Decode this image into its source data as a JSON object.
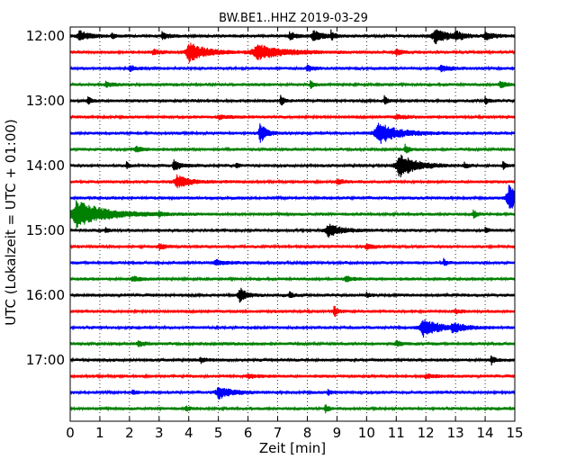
{
  "chart_data": {
    "type": "line",
    "title": "BW.BE1..HHZ 2019-03-29",
    "xlabel": "Zeit  [min]",
    "ylabel": "UTC (Lokalzeit = UTC + 01:00)",
    "xlim": [
      0,
      15
    ],
    "x_ticks": [
      "0",
      "1",
      "2",
      "3",
      "4",
      "5",
      "6",
      "7",
      "8",
      "9",
      "10",
      "11",
      "12",
      "13",
      "14",
      "15"
    ],
    "y_ticks": [
      "12:00",
      "13:00",
      "14:00",
      "15:00",
      "16:00",
      "17:00"
    ],
    "grid": "vertical dotted",
    "trace_colors": [
      "#000000",
      "#ff0000",
      "#0000ff",
      "#008000"
    ],
    "traces": [
      {
        "start": "12:00",
        "events": [
          [
            0.3,
            6,
            0.3
          ],
          [
            1.4,
            3,
            0.1
          ],
          [
            3.1,
            4,
            0.2
          ],
          [
            7.4,
            4,
            0.2
          ],
          [
            8.2,
            6,
            0.3
          ],
          [
            8.8,
            5,
            0.1
          ],
          [
            12.3,
            9,
            0.4
          ],
          [
            13.0,
            5,
            0.2
          ],
          [
            14.0,
            4,
            0.3
          ]
        ]
      },
      {
        "start": "12:15",
        "events": [
          [
            4.0,
            11,
            0.5
          ],
          [
            6.3,
            8,
            0.8
          ],
          [
            2.8,
            3,
            0.2
          ],
          [
            11.0,
            3,
            0.2
          ]
        ]
      },
      {
        "start": "12:30",
        "events": [
          [
            2.0,
            3,
            0.2
          ],
          [
            8.0,
            3,
            0.2
          ],
          [
            12.5,
            3,
            0.3
          ]
        ]
      },
      {
        "start": "12:45",
        "events": [
          [
            1.2,
            3,
            0.2
          ],
          [
            8.1,
            4,
            0.1
          ],
          [
            14.5,
            4,
            0.2
          ]
        ]
      },
      {
        "start": "13:00",
        "events": [
          [
            0.6,
            5,
            0.1
          ],
          [
            7.1,
            6,
            0.1
          ],
          [
            10.6,
            5,
            0.1
          ],
          [
            14.0,
            4,
            0.1
          ]
        ]
      },
      {
        "start": "13:15",
        "events": [
          [
            5.0,
            2,
            0.3
          ],
          [
            11.0,
            2,
            0.3
          ]
        ]
      },
      {
        "start": "13:30",
        "events": [
          [
            6.4,
            11,
            0.2
          ],
          [
            10.4,
            12,
            0.6
          ]
        ]
      },
      {
        "start": "13:45",
        "events": [
          [
            2.2,
            3,
            0.2
          ],
          [
            11.3,
            5,
            0.1
          ]
        ]
      },
      {
        "start": "14:00",
        "events": [
          [
            1.9,
            4,
            0.1
          ],
          [
            3.5,
            6,
            0.2
          ],
          [
            5.6,
            3,
            0.1
          ],
          [
            11.1,
            14,
            0.5
          ],
          [
            13.3,
            3,
            0.1
          ],
          [
            14.6,
            4,
            0.1
          ]
        ]
      },
      {
        "start": "14:15",
        "events": [
          [
            3.6,
            7,
            0.4
          ],
          [
            9.0,
            3,
            0.2
          ]
        ]
      },
      {
        "start": "14:30",
        "events": [
          [
            14.8,
            14,
            0.4
          ]
        ]
      },
      {
        "start": "14:45",
        "events": [
          [
            0.2,
            15,
            0.9
          ],
          [
            3.0,
            3,
            0.1
          ],
          [
            13.6,
            5,
            0.1
          ]
        ]
      },
      {
        "start": "15:00",
        "events": [
          [
            8.7,
            7,
            0.4
          ],
          [
            1.2,
            3,
            0.1
          ],
          [
            14.0,
            3,
            0.1
          ]
        ]
      },
      {
        "start": "15:15",
        "events": [
          [
            3.0,
            3,
            0.2
          ],
          [
            10.0,
            3,
            0.2
          ]
        ]
      },
      {
        "start": "15:30",
        "events": [
          [
            4.9,
            3,
            0.3
          ],
          [
            12.6,
            4,
            0.1
          ]
        ]
      },
      {
        "start": "15:45",
        "events": [
          [
            2.1,
            3,
            0.2
          ],
          [
            9.3,
            3,
            0.2
          ]
        ]
      },
      {
        "start": "16:00",
        "events": [
          [
            5.7,
            9,
            0.2
          ],
          [
            7.4,
            4,
            0.1
          ],
          [
            10.0,
            3,
            0.1
          ]
        ]
      },
      {
        "start": "16:15",
        "events": [
          [
            8.9,
            7,
            0.1
          ],
          [
            13.0,
            2,
            0.2
          ]
        ]
      },
      {
        "start": "16:30",
        "events": [
          [
            11.9,
            10,
            0.5
          ],
          [
            12.9,
            4,
            0.4
          ]
        ]
      },
      {
        "start": "16:45",
        "events": [
          [
            2.3,
            3,
            0.2
          ],
          [
            11.0,
            3,
            0.2
          ]
        ]
      },
      {
        "start": "17:00",
        "events": [
          [
            4.4,
            3,
            0.2
          ],
          [
            14.2,
            6,
            0.1
          ]
        ]
      },
      {
        "start": "17:15",
        "events": [
          [
            6.0,
            2,
            0.3
          ],
          [
            12.0,
            2,
            0.3
          ]
        ]
      },
      {
        "start": "17:30",
        "events": [
          [
            5.0,
            7,
            0.4
          ],
          [
            2.1,
            3,
            0.1
          ],
          [
            8.7,
            3,
            0.1
          ]
        ]
      },
      {
        "start": "17:45",
        "events": [
          [
            8.6,
            5,
            0.1
          ],
          [
            3.9,
            3,
            0.1
          ]
        ]
      }
    ]
  }
}
